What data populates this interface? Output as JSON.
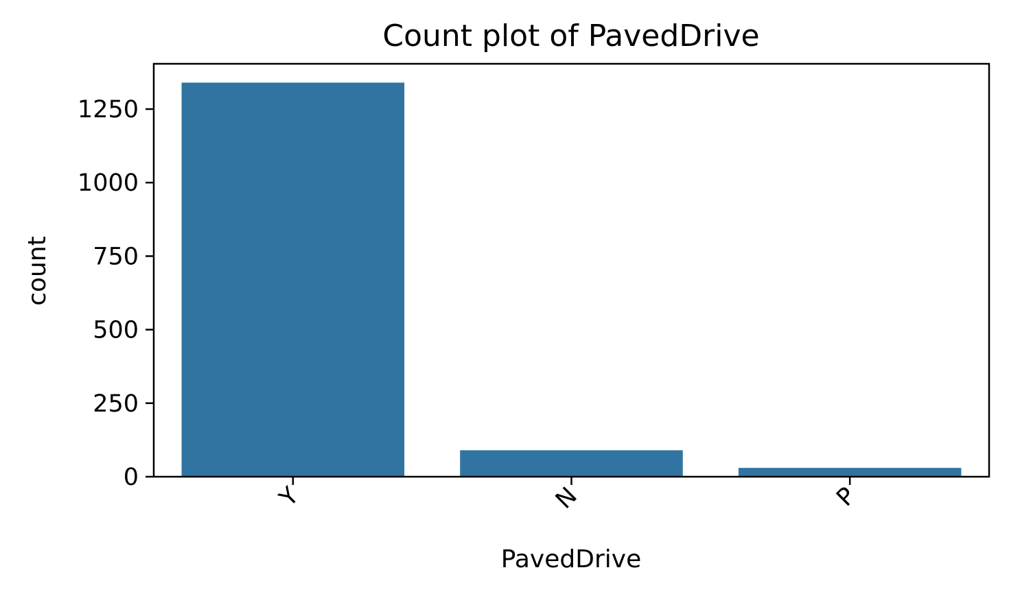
{
  "chart_data": {
    "type": "bar",
    "title": "Count plot of PavedDrive",
    "xlabel": "PavedDrive",
    "ylabel": "count",
    "categories": [
      "Y",
      "N",
      "P"
    ],
    "values": [
      1340,
      90,
      30
    ],
    "ylim": [
      0,
      1404
    ],
    "yticks": [
      0,
      250,
      500,
      750,
      1000,
      1250
    ],
    "xtick_rotation_deg": 45,
    "grid": false,
    "bar_color": "#3274a1"
  }
}
